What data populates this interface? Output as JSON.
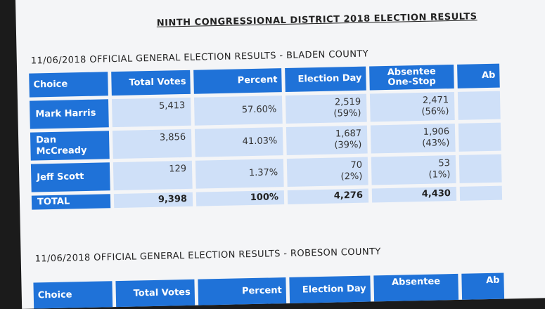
{
  "doc_title": "NINTH CONGRESSIONAL DISTRICT 2018 ELECTION RESULTS",
  "bladen": {
    "title": "11/06/2018 OFFICIAL GENERAL ELECTION RESULTS - BLADEN COUNTY",
    "headers": [
      "Choice",
      "Total Votes",
      "Percent",
      "Election Day",
      "Absentee One-Stop",
      "Ab"
    ],
    "rows": [
      {
        "choice": "Mark Harris",
        "total": "5,413",
        "percent": "57.60%",
        "eday": "2,519",
        "eday_pct": "(59%)",
        "onestop": "2,471",
        "onestop_pct": "(56%)"
      },
      {
        "choice": "Dan McCready",
        "total": "3,856",
        "percent": "41.03%",
        "eday": "1,687",
        "eday_pct": "(39%)",
        "onestop": "1,906",
        "onestop_pct": "(43%)"
      },
      {
        "choice": "Jeff Scott",
        "total": "129",
        "percent": "1.37%",
        "eday": "70",
        "eday_pct": "(2%)",
        "onestop": "53",
        "onestop_pct": "(1%)"
      }
    ],
    "total": {
      "label": "TOTAL",
      "total": "9,398",
      "percent": "100%",
      "eday": "4,276",
      "onestop": "4,430"
    }
  },
  "robeson": {
    "title": "11/06/2018 OFFICIAL GENERAL ELECTION RESULTS - ROBESON COUNTY",
    "headers": [
      "Choice",
      "Total Votes",
      "Percent",
      "Election Day",
      "Absentee",
      "Ab"
    ]
  }
}
